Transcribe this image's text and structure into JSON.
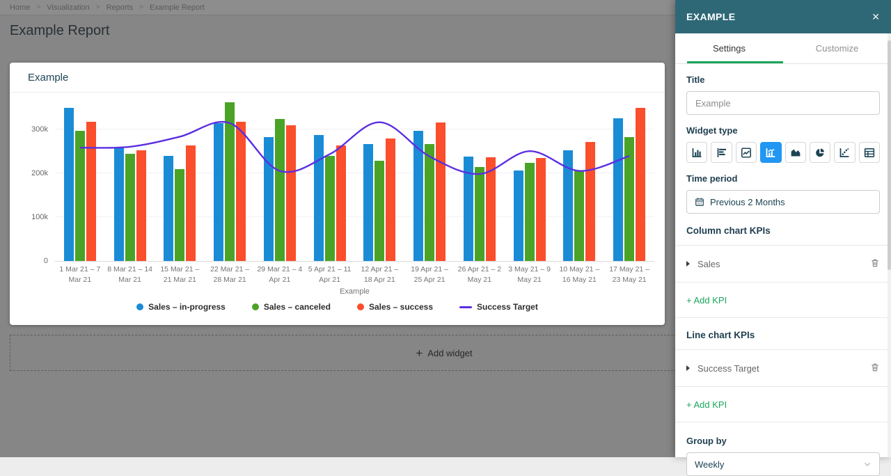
{
  "breadcrumb": {
    "items": [
      "Home",
      "Visualization",
      "Reports",
      "Example Report"
    ],
    "separator": ">"
  },
  "page": {
    "title": "Example Report"
  },
  "add_widget": {
    "plus": "+",
    "label": "Add widget"
  },
  "widget": {
    "title": "Example"
  },
  "chart_data": {
    "type": "bar",
    "subtype": "grouped columns with line overlay",
    "categories": [
      "1 Mar 21 – 7 Mar 21",
      "8 Mar 21 – 14 Mar 21",
      "15 Mar 21 – 21 Mar 21",
      "22 Mar 21 – 28 Mar 21",
      "29 Mar 21 – 4 Apr 21",
      "5 Apr 21 – 11 Apr 21",
      "12 Apr 21 – 18 Apr 21",
      "19 Apr 21 – 25 Apr 21",
      "26 Apr 21 – 2 May 21",
      "3 May 21 – 9 May 21",
      "10 May 21 – 16 May 21",
      "17 May 21 – 23 May 21"
    ],
    "series": [
      {
        "name": "Sales – in-progress",
        "type": "bar",
        "color": "#1a8cd6",
        "values": [
          350000,
          257000,
          240000,
          314000,
          282000,
          288000,
          266000,
          297000,
          238000,
          206000,
          252000,
          325000
        ]
      },
      {
        "name": "Sales – canceled",
        "type": "bar",
        "color": "#4aa327",
        "values": [
          297000,
          245000,
          210000,
          362000,
          324000,
          240000,
          228000,
          266000,
          214000,
          224000,
          207000,
          283000
        ]
      },
      {
        "name": "Sales – success",
        "type": "bar",
        "color": "#fb4e2c",
        "values": [
          318000,
          253000,
          264000,
          317000,
          310000,
          264000,
          279000,
          316000,
          236000,
          235000,
          271000,
          350000
        ]
      },
      {
        "name": "Success Target",
        "type": "line",
        "color": "#5b2ee1",
        "values": [
          260000,
          262000,
          285000,
          316000,
          207000,
          245000,
          318000,
          240000,
          200000,
          252000,
          207000,
          241000
        ]
      }
    ],
    "xlabel": "Example",
    "ylabel": "",
    "y_ticks": [
      "0",
      "100k",
      "200k",
      "300k"
    ],
    "y_tick_values": [
      0,
      100000,
      200000,
      300000
    ],
    "ylim": [
      0,
      385714
    ],
    "grid": true,
    "legend_position": "bottom"
  },
  "panel": {
    "header": "EXAMPLE",
    "close": "✕",
    "tabs": [
      {
        "label": "Settings",
        "active": true
      },
      {
        "label": "Customize",
        "active": false
      }
    ],
    "title_field": {
      "label": "Title",
      "value": "Example"
    },
    "widget_type": {
      "label": "Widget type",
      "options": [
        "column-chart",
        "bar-chart",
        "line-chart",
        "combo-chart",
        "area-chart",
        "pie-chart",
        "scatter-plot",
        "table"
      ],
      "selected": "combo-chart"
    },
    "time_period": {
      "label": "Time period",
      "value": "Previous 2 Months"
    },
    "column_kpis": {
      "label": "Column chart KPIs",
      "items": [
        {
          "name": "Sales"
        }
      ],
      "add_label": "+ Add KPI"
    },
    "line_kpis": {
      "label": "Line chart KPIs",
      "items": [
        {
          "name": "Success Target"
        }
      ],
      "add_label": "+ Add KPI"
    },
    "group_by": {
      "label": "Group by",
      "value": "Weekly"
    }
  },
  "colors": {
    "panel_header": "#2e6877",
    "accent_green": "#16a75c",
    "selected_widget_type": "#2196f3",
    "bar_blue": "#1a8cd6",
    "bar_green": "#4aa327",
    "bar_red": "#fb4e2c",
    "line_purple": "#5b2ee1"
  }
}
